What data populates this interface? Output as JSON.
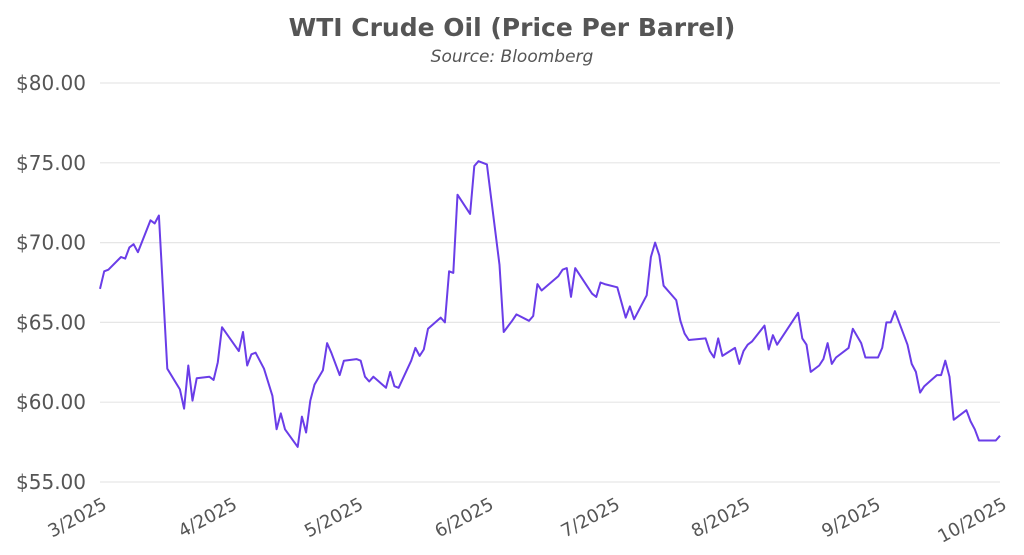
{
  "chart_data": {
    "type": "line",
    "title": "WTI Crude Oil (Price Per Barrel)",
    "subtitle": "Source: Bloomberg",
    "xlabel": "",
    "ylabel": "",
    "ylim": [
      55,
      80
    ],
    "xlim": [
      "2025-03-01",
      "2025-10-01"
    ],
    "grid": "horizontal",
    "line_color": "#6a3de8",
    "y_ticks": [
      {
        "value": 55,
        "label": "$55.00"
      },
      {
        "value": 60,
        "label": "$60.00"
      },
      {
        "value": 65,
        "label": "$65.00"
      },
      {
        "value": 70,
        "label": "$70.00"
      },
      {
        "value": 75,
        "label": "$75.00"
      },
      {
        "value": 80,
        "label": "$80.00"
      }
    ],
    "x_ticks": [
      {
        "value": "2025-03-01",
        "label": "3/2025"
      },
      {
        "value": "2025-04-01",
        "label": "4/2025"
      },
      {
        "value": "2025-05-01",
        "label": "5/2025"
      },
      {
        "value": "2025-06-01",
        "label": "6/2025"
      },
      {
        "value": "2025-07-01",
        "label": "7/2025"
      },
      {
        "value": "2025-08-01",
        "label": "8/2025"
      },
      {
        "value": "2025-09-01",
        "label": "9/2025"
      },
      {
        "value": "2025-10-01",
        "label": "10/2025"
      }
    ],
    "series": [
      {
        "x": [
          "2025-03-01",
          "2025-03-02",
          "2025-03-03",
          "2025-03-06",
          "2025-03-07",
          "2025-03-08",
          "2025-03-09",
          "2025-03-10",
          "2025-03-13",
          "2025-03-14",
          "2025-03-15",
          "2025-03-17",
          "2025-03-20",
          "2025-03-21",
          "2025-03-22",
          "2025-03-23",
          "2025-03-24",
          "2025-03-27",
          "2025-03-28",
          "2025-03-29",
          "2025-03-30",
          "2025-04-03",
          "2025-04-04",
          "2025-04-05",
          "2025-04-06",
          "2025-04-07",
          "2025-04-09",
          "2025-04-11",
          "2025-04-12",
          "2025-04-13",
          "2025-04-14",
          "2025-04-17",
          "2025-04-18",
          "2025-04-19",
          "2025-04-20",
          "2025-04-21",
          "2025-04-23",
          "2025-04-24",
          "2025-04-25",
          "2025-04-27",
          "2025-04-28",
          "2025-05-01",
          "2025-05-02",
          "2025-05-03",
          "2025-05-04",
          "2025-05-05",
          "2025-05-08",
          "2025-05-09",
          "2025-05-10",
          "2025-05-11",
          "2025-05-14",
          "2025-05-15",
          "2025-05-16",
          "2025-05-17",
          "2025-05-18",
          "2025-05-21",
          "2025-05-22",
          "2025-05-23",
          "2025-05-24",
          "2025-05-25",
          "2025-05-28",
          "2025-05-29",
          "2025-05-30",
          "2025-06-01",
          "2025-06-04",
          "2025-06-05",
          "2025-06-07",
          "2025-06-08",
          "2025-06-11",
          "2025-06-12",
          "2025-06-13",
          "2025-06-14",
          "2025-06-18",
          "2025-06-19",
          "2025-06-20",
          "2025-06-21",
          "2025-06-22",
          "2025-06-26",
          "2025-06-27",
          "2025-06-28",
          "2025-06-29",
          "2025-07-02",
          "2025-07-04",
          "2025-07-05",
          "2025-07-06",
          "2025-07-09",
          "2025-07-10",
          "2025-07-11",
          "2025-07-12",
          "2025-07-13",
          "2025-07-16",
          "2025-07-17",
          "2025-07-18",
          "2025-07-19",
          "2025-07-23",
          "2025-07-24",
          "2025-07-25",
          "2025-07-26",
          "2025-07-27",
          "2025-07-30",
          "2025-07-31",
          "2025-08-01",
          "2025-08-02",
          "2025-08-03",
          "2025-08-06",
          "2025-08-07",
          "2025-08-08",
          "2025-08-09",
          "2025-08-14",
          "2025-08-15",
          "2025-08-16",
          "2025-08-17",
          "2025-08-19",
          "2025-08-20",
          "2025-08-21",
          "2025-08-22",
          "2025-08-23",
          "2025-08-26",
          "2025-08-27",
          "2025-08-29",
          "2025-08-30",
          "2025-09-02",
          "2025-09-03",
          "2025-09-04",
          "2025-09-05",
          "2025-09-06",
          "2025-09-09",
          "2025-09-10",
          "2025-09-11",
          "2025-09-12",
          "2025-09-13",
          "2025-09-16",
          "2025-09-17",
          "2025-09-18",
          "2025-09-19",
          "2025-09-20",
          "2025-09-23",
          "2025-09-24",
          "2025-09-25",
          "2025-09-26",
          "2025-09-27",
          "2025-09-30",
          "2025-10-01"
        ],
        "y": [
          67.1,
          68.2,
          68.3,
          69.1,
          69.0,
          69.7,
          69.9,
          69.4,
          71.4,
          71.2,
          71.7,
          62.1,
          60.8,
          59.6,
          62.3,
          60.1,
          61.5,
          61.6,
          61.4,
          62.5,
          64.7,
          63.2,
          64.4,
          62.3,
          63.0,
          63.1,
          62.1,
          60.4,
          58.3,
          59.3,
          58.3,
          57.2,
          59.1,
          58.1,
          60.1,
          61.1,
          62.0,
          63.7,
          63.1,
          61.7,
          62.6,
          62.7,
          62.6,
          61.6,
          61.3,
          61.6,
          60.9,
          61.9,
          61.0,
          60.9,
          62.6,
          63.4,
          62.9,
          63.3,
          64.6,
          65.3,
          65.0,
          68.2,
          68.1,
          73.0,
          71.8,
          74.8,
          75.1,
          74.9,
          68.6,
          64.4,
          65.1,
          65.5,
          65.1,
          65.4,
          67.4,
          67.0,
          67.9,
          68.3,
          68.4,
          66.6,
          68.4,
          66.8,
          66.6,
          67.5,
          67.4,
          67.2,
          65.3,
          66.0,
          65.2,
          66.7,
          69.1,
          70.0,
          69.2,
          67.3,
          66.4,
          65.1,
          64.3,
          63.9,
          64.0,
          63.2,
          62.8,
          64.0,
          62.9,
          63.4,
          62.4,
          63.2,
          63.6,
          63.8,
          64.8,
          63.3,
          64.2,
          63.6,
          65.6,
          64.0,
          63.6,
          61.9,
          62.3,
          62.7,
          63.7,
          62.4,
          62.8,
          63.4,
          64.6,
          63.7,
          62.8,
          62.8,
          63.4,
          65.0,
          65.0,
          65.7,
          63.6,
          62.4,
          61.9,
          60.6,
          61.0,
          61.7,
          61.7,
          62.6,
          61.6,
          58.9,
          59.5,
          58.8,
          58.3,
          57.6,
          57.6,
          57.6,
          57.9
        ]
      }
    ]
  }
}
